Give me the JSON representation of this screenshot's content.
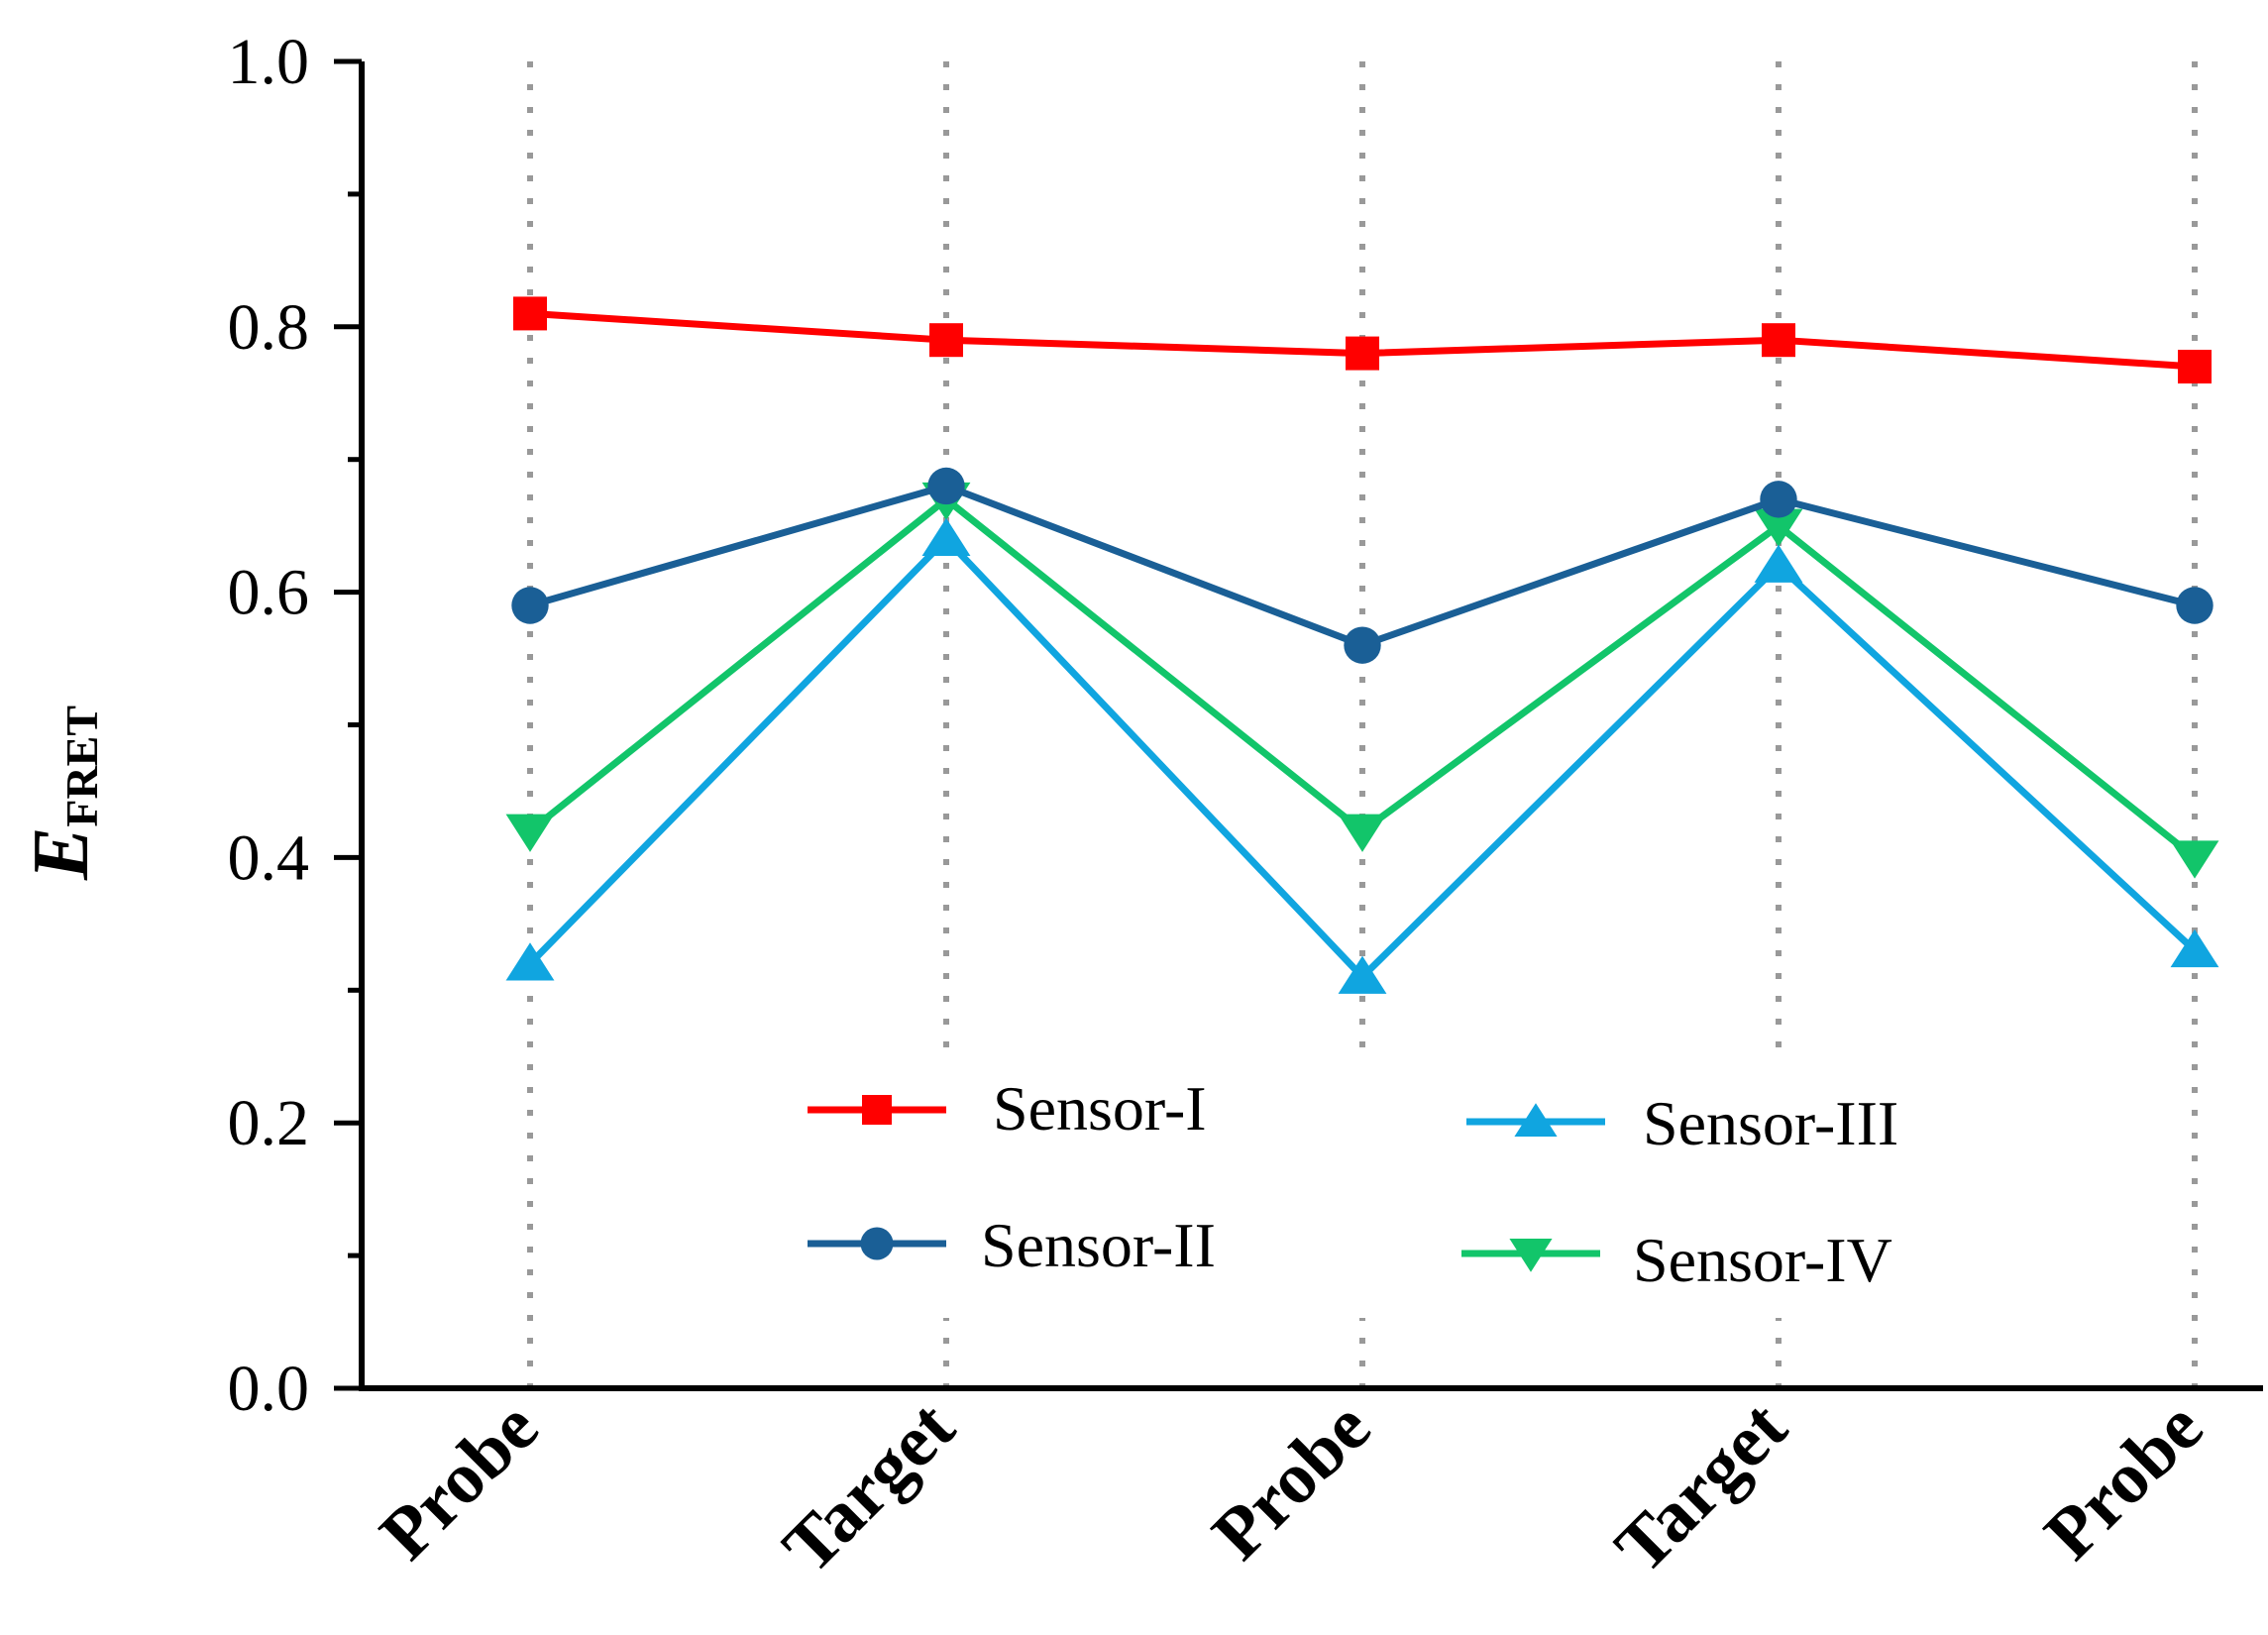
{
  "chart_data": {
    "type": "line",
    "categories": [
      "Probe",
      "Target",
      "Probe",
      "Target",
      "Probe"
    ],
    "ylabel": "E",
    "ylabel_subscript": "FRET",
    "xlabel": "",
    "ylim": [
      0.0,
      1.0
    ],
    "yticks": [
      "0.0",
      "0.2",
      "0.4",
      "0.6",
      "0.8",
      "1.0"
    ],
    "grid": "vertical dotted",
    "legend": "bottom-center, two columns",
    "series": [
      {
        "name": "Sensor-I",
        "marker": "square",
        "color": "#ff0000",
        "values": [
          0.81,
          0.79,
          0.78,
          0.79,
          0.77
        ]
      },
      {
        "name": "Sensor-II",
        "marker": "circle",
        "color": "#1a5f96",
        "values": [
          0.59,
          0.68,
          0.56,
          0.67,
          0.59
        ]
      },
      {
        "name": "Sensor-III",
        "marker": "triangle-up",
        "color": "#10a5e0",
        "values": [
          0.32,
          0.64,
          0.31,
          0.62,
          0.33
        ]
      },
      {
        "name": "Sensor-IV",
        "marker": "triangle-down",
        "color": "#12c56a",
        "values": [
          0.42,
          0.67,
          0.42,
          0.65,
          0.4
        ]
      }
    ]
  }
}
